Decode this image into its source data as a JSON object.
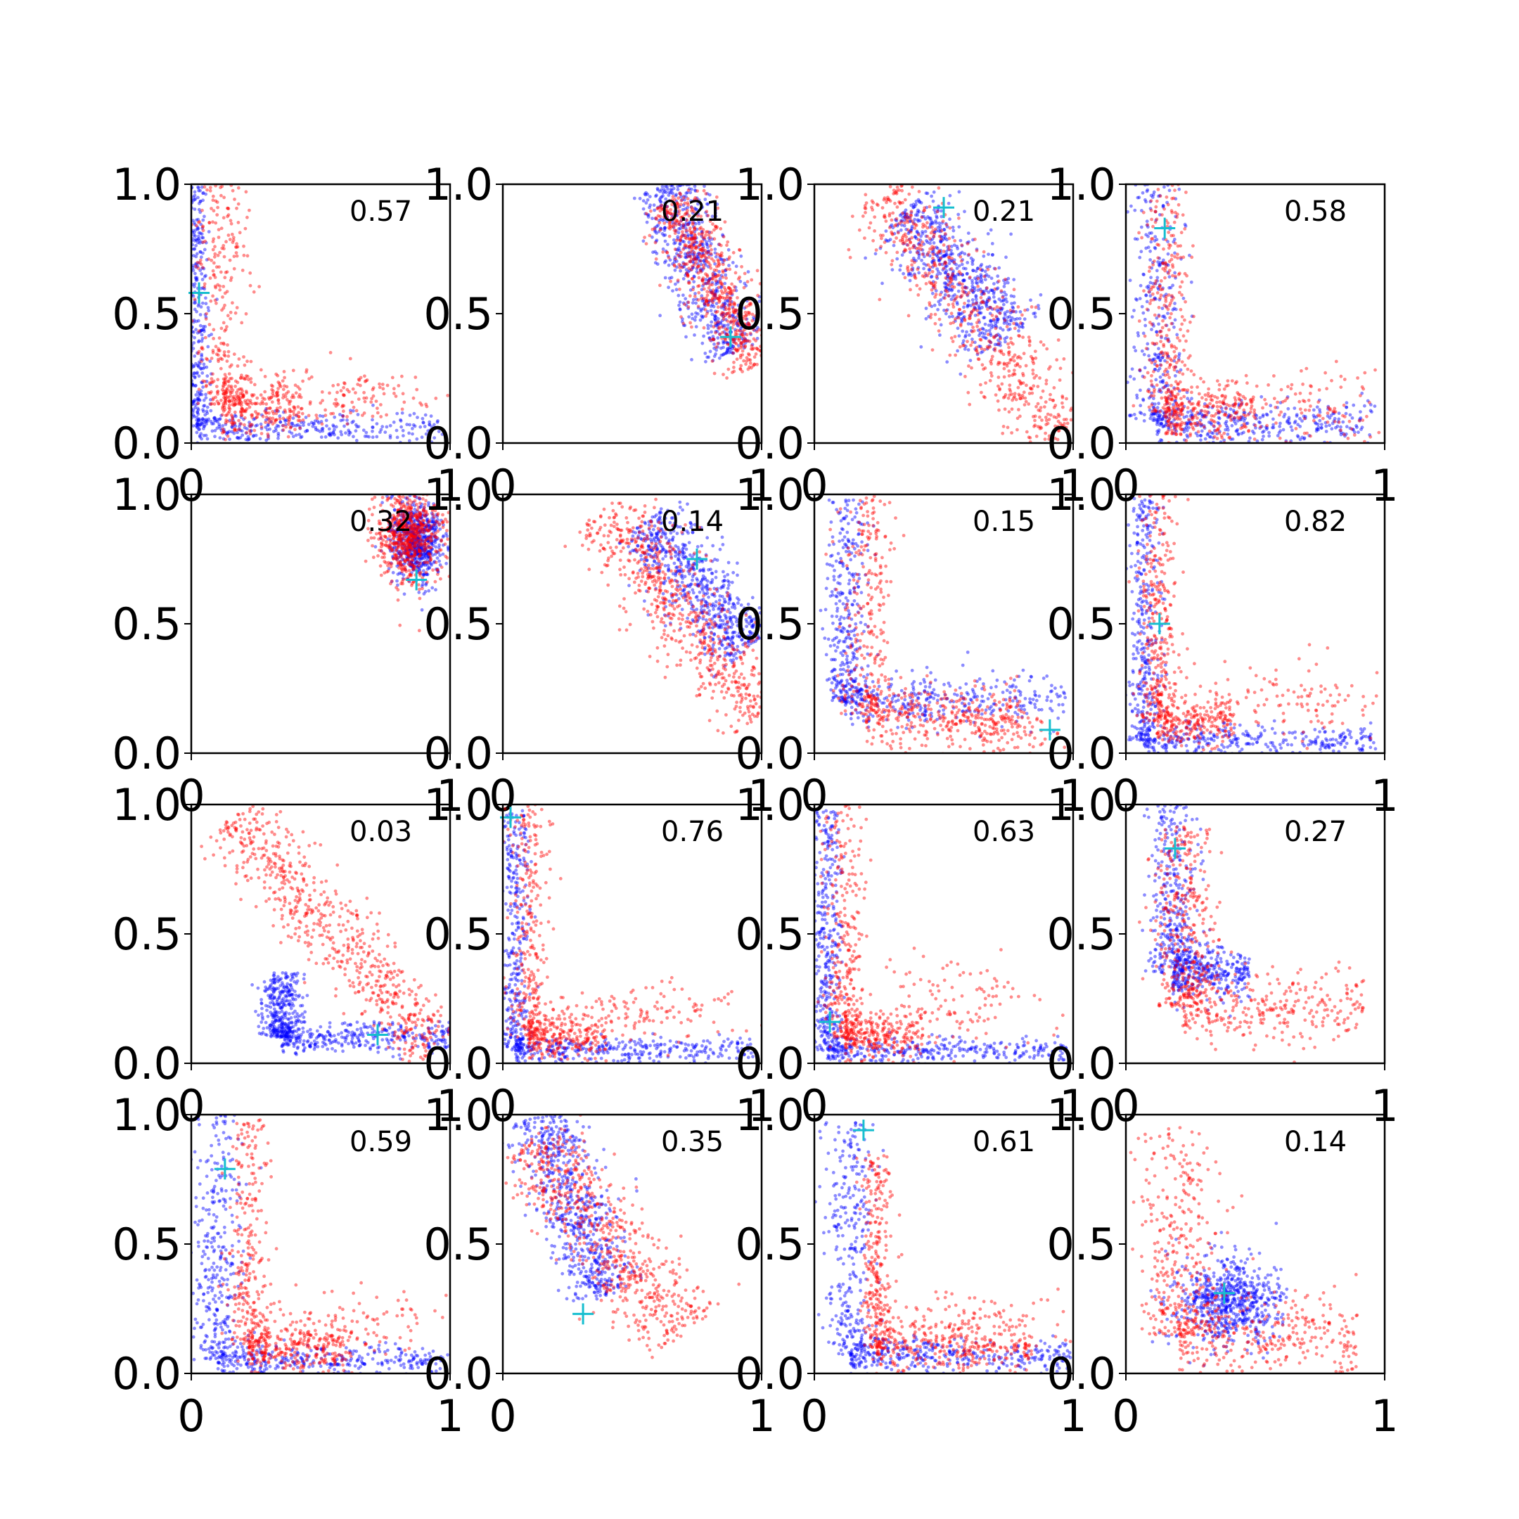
{
  "figure": {
    "background": "#ffffff"
  },
  "style": {
    "series_colors": {
      "blue": "#0000ff",
      "red": "#ff0000",
      "marker": "#17becf"
    },
    "point_alpha": 0.45
  },
  "chart_data": [
    {
      "type": "scatter",
      "title": "",
      "xlabel": "",
      "ylabel": "",
      "xlim": [
        0,
        1
      ],
      "ylim": [
        0,
        1
      ],
      "x_ticks": [
        "0",
        "1"
      ],
      "y_ticks": [
        "0.0",
        "0.5",
        "1.0"
      ],
      "grid": false,
      "annotation": "0.57",
      "marker": {
        "x": 0.03,
        "y": 0.58
      },
      "series": [
        {
          "color": "blue",
          "cloud": {
            "shape": "L",
            "corner": [
              0.02,
              0.06
            ],
            "armLengthX": 0.95,
            "armLengthY": 0.94,
            "spreadX": 0.025,
            "spreadY": 0.03
          }
        },
        {
          "color": "red",
          "cloud": {
            "shape": "L",
            "corner": [
              0.12,
              0.15
            ],
            "armLengthX": 0.3,
            "armLengthY": 0.85,
            "spreadX": 0.05,
            "spreadY": 0.06,
            "tail": {
              "center": [
                0.62,
                0.18
              ],
              "spread": [
                0.15,
                0.06
              ]
            }
          }
        }
      ]
    },
    {
      "type": "scatter",
      "title": "",
      "xlabel": "",
      "ylabel": "",
      "xlim": [
        0,
        1
      ],
      "ylim": [
        0,
        1
      ],
      "x_ticks": [
        "0",
        "1"
      ],
      "y_ticks": [
        "0.0",
        "0.5",
        "1.0"
      ],
      "grid": false,
      "annotation": "0.21",
      "marker": {
        "x": 0.88,
        "y": 0.41
      },
      "series": [
        {
          "color": "blue",
          "cloud": {
            "shape": "band",
            "start": [
              0.62,
              1.0
            ],
            "end": [
              0.9,
              0.35
            ],
            "width": 0.07
          }
        },
        {
          "color": "red",
          "cloud": {
            "shape": "band",
            "start": [
              0.65,
              0.95
            ],
            "end": [
              0.98,
              0.3
            ],
            "width": 0.06
          }
        }
      ]
    },
    {
      "type": "scatter",
      "title": "",
      "xlabel": "",
      "ylabel": "",
      "xlim": [
        0,
        1
      ],
      "ylim": [
        0,
        1
      ],
      "x_ticks": [
        "0",
        "1"
      ],
      "y_ticks": [
        "0.0",
        "0.5",
        "1.0"
      ],
      "grid": false,
      "annotation": "0.21",
      "marker": {
        "x": 0.5,
        "y": 0.91
      },
      "series": [
        {
          "color": "blue",
          "cloud": {
            "shape": "band",
            "start": [
              0.35,
              0.9
            ],
            "end": [
              0.75,
              0.4
            ],
            "width": 0.08
          }
        },
        {
          "color": "red",
          "cloud": {
            "shape": "band",
            "start": [
              0.25,
              1.0
            ],
            "end": [
              0.95,
              0.02
            ],
            "width": 0.08
          }
        }
      ]
    },
    {
      "type": "scatter",
      "title": "",
      "xlabel": "",
      "ylabel": "",
      "xlim": [
        0,
        1
      ],
      "ylim": [
        0,
        1
      ],
      "x_ticks": [
        "0",
        "1"
      ],
      "y_ticks": [
        "0.0",
        "0.5",
        "1.0"
      ],
      "grid": false,
      "annotation": "0.58",
      "marker": {
        "x": 0.15,
        "y": 0.83
      },
      "series": [
        {
          "color": "blue",
          "cloud": {
            "shape": "L",
            "corner": [
              0.12,
              0.08
            ],
            "armLengthX": 0.85,
            "armLengthY": 0.92,
            "spreadX": 0.05,
            "spreadY": 0.04
          }
        },
        {
          "color": "red",
          "cloud": {
            "shape": "L",
            "corner": [
              0.15,
              0.12
            ],
            "armLengthX": 0.35,
            "armLengthY": 0.88,
            "spreadX": 0.05,
            "spreadY": 0.06,
            "tail": {
              "center": [
                0.68,
                0.14
              ],
              "spread": [
                0.18,
                0.07
              ]
            }
          }
        }
      ]
    },
    {
      "type": "scatter",
      "title": "",
      "xlabel": "",
      "ylabel": "",
      "xlim": [
        0,
        1
      ],
      "ylim": [
        0,
        1
      ],
      "x_ticks": [
        "0",
        "1"
      ],
      "y_ticks": [
        "0.0",
        "0.5",
        "1.0"
      ],
      "grid": false,
      "annotation": "0.32",
      "marker": {
        "x": 0.87,
        "y": 0.67
      },
      "series": [
        {
          "color": "blue",
          "cloud": {
            "shape": "blob",
            "center": [
              0.87,
              0.82
            ],
            "spread": [
              0.05,
              0.08
            ]
          }
        },
        {
          "color": "red",
          "cloud": {
            "shape": "blob",
            "center": [
              0.84,
              0.84
            ],
            "spread": [
              0.06,
              0.09
            ]
          }
        }
      ]
    },
    {
      "type": "scatter",
      "title": "",
      "xlabel": "",
      "ylabel": "",
      "xlim": [
        0,
        1
      ],
      "ylim": [
        0,
        1
      ],
      "x_ticks": [
        "0",
        "1"
      ],
      "y_ticks": [
        "0.0",
        "0.5",
        "1.0"
      ],
      "grid": false,
      "annotation": "0.14",
      "marker": {
        "x": 0.75,
        "y": 0.75
      },
      "series": [
        {
          "color": "blue",
          "cloud": {
            "shape": "band",
            "start": [
              0.55,
              0.9
            ],
            "end": [
              0.95,
              0.4
            ],
            "width": 0.07
          }
        },
        {
          "color": "red",
          "cloud": {
            "shape": "band",
            "start": [
              0.4,
              0.95
            ],
            "end": [
              1.0,
              0.15
            ],
            "width": 0.08
          }
        }
      ]
    },
    {
      "type": "scatter",
      "title": "",
      "xlabel": "",
      "ylabel": "",
      "xlim": [
        0,
        1
      ],
      "ylim": [
        0,
        1
      ],
      "x_ticks": [
        "0",
        "1"
      ],
      "y_ticks": [
        "0.0",
        "0.5",
        "1.0"
      ],
      "grid": false,
      "annotation": "0.15",
      "marker": {
        "x": 0.91,
        "y": 0.09
      },
      "series": [
        {
          "color": "blue",
          "cloud": {
            "shape": "L",
            "corner": [
              0.12,
              0.2
            ],
            "armLengthX": 0.85,
            "armLengthY": 0.78,
            "spreadX": 0.04,
            "spreadY": 0.05
          }
        },
        {
          "color": "red",
          "cloud": {
            "shape": "L",
            "corner": [
              0.2,
              0.15
            ],
            "armLengthX": 0.6,
            "armLengthY": 0.85,
            "spreadX": 0.05,
            "spreadY": 0.06,
            "tail": {
              "center": [
                0.7,
                0.08
              ],
              "spread": [
                0.18,
                0.05
              ]
            }
          }
        }
      ]
    },
    {
      "type": "scatter",
      "title": "",
      "xlabel": "",
      "ylabel": "",
      "xlim": [
        0,
        1
      ],
      "ylim": [
        0,
        1
      ],
      "x_ticks": [
        "0",
        "1"
      ],
      "y_ticks": [
        "0.0",
        "0.5",
        "1.0"
      ],
      "grid": false,
      "annotation": "0.82",
      "marker": {
        "x": 0.13,
        "y": 0.5
      },
      "series": [
        {
          "color": "blue",
          "cloud": {
            "shape": "L",
            "corner": [
              0.07,
              0.05
            ],
            "armLengthX": 0.9,
            "armLengthY": 0.95,
            "spreadX": 0.035,
            "spreadY": 0.03
          }
        },
        {
          "color": "red",
          "cloud": {
            "shape": "L",
            "corner": [
              0.12,
              0.12
            ],
            "armLengthX": 0.3,
            "armLengthY": 0.88,
            "spreadX": 0.04,
            "spreadY": 0.05,
            "tail": {
              "center": [
                0.6,
                0.2
              ],
              "spread": [
                0.2,
                0.08
              ]
            }
          }
        }
      ]
    },
    {
      "type": "scatter",
      "title": "",
      "xlabel": "",
      "ylabel": "",
      "xlim": [
        0,
        1
      ],
      "ylim": [
        0,
        1
      ],
      "x_ticks": [
        "0",
        "1"
      ],
      "y_ticks": [
        "0.0",
        "0.5",
        "1.0"
      ],
      "grid": false,
      "annotation": "0.03",
      "marker": {
        "x": 0.72,
        "y": 0.11
      },
      "series": [
        {
          "color": "blue",
          "cloud": {
            "shape": "L",
            "corner": [
              0.35,
              0.1
            ],
            "armLengthX": 0.65,
            "armLengthY": 0.25,
            "spreadX": 0.04,
            "spreadY": 0.03
          }
        },
        {
          "color": "red",
          "cloud": {
            "shape": "band",
            "start": [
              0.15,
              0.95
            ],
            "end": [
              0.95,
              0.06
            ],
            "width": 0.07
          }
        }
      ]
    },
    {
      "type": "scatter",
      "title": "",
      "xlabel": "",
      "ylabel": "",
      "xlim": [
        0,
        1
      ],
      "ylim": [
        0,
        1
      ],
      "x_ticks": [
        "0",
        "1"
      ],
      "y_ticks": [
        "0.0",
        "0.5",
        "1.0"
      ],
      "grid": false,
      "annotation": "0.76",
      "marker": {
        "x": 0.03,
        "y": 0.95
      },
      "series": [
        {
          "color": "blue",
          "cloud": {
            "shape": "L",
            "corner": [
              0.05,
              0.05
            ],
            "armLengthX": 0.93,
            "armLengthY": 0.93,
            "spreadX": 0.03,
            "spreadY": 0.025
          }
        },
        {
          "color": "red",
          "cloud": {
            "shape": "L",
            "corner": [
              0.1,
              0.1
            ],
            "armLengthX": 0.3,
            "armLengthY": 0.9,
            "spreadX": 0.04,
            "spreadY": 0.05,
            "tail": {
              "center": [
                0.55,
                0.2
              ],
              "spread": [
                0.18,
                0.06
              ]
            }
          }
        }
      ]
    },
    {
      "type": "scatter",
      "title": "",
      "xlabel": "",
      "ylabel": "",
      "xlim": [
        0,
        1
      ],
      "ylim": [
        0,
        1
      ],
      "x_ticks": [
        "0",
        "1"
      ],
      "y_ticks": [
        "0.0",
        "0.5",
        "1.0"
      ],
      "grid": false,
      "annotation": "0.63",
      "marker": {
        "x": 0.06,
        "y": 0.16
      },
      "series": [
        {
          "color": "blue",
          "cloud": {
            "shape": "L",
            "corner": [
              0.05,
              0.05
            ],
            "armLengthX": 0.93,
            "armLengthY": 0.93,
            "spreadX": 0.03,
            "spreadY": 0.025
          }
        },
        {
          "color": "red",
          "cloud": {
            "shape": "L",
            "corner": [
              0.12,
              0.1
            ],
            "armLengthX": 0.3,
            "armLengthY": 0.9,
            "spreadX": 0.04,
            "spreadY": 0.05,
            "tail": {
              "center": [
                0.55,
                0.22
              ],
              "spread": [
                0.18,
                0.08
              ]
            }
          }
        }
      ]
    },
    {
      "type": "scatter",
      "title": "",
      "xlabel": "",
      "ylabel": "",
      "xlim": [
        0,
        1
      ],
      "ylim": [
        0,
        1
      ],
      "x_ticks": [
        "0",
        "1"
      ],
      "y_ticks": [
        "0.0",
        "0.5",
        "1.0"
      ],
      "grid": false,
      "annotation": "0.27",
      "marker": {
        "x": 0.19,
        "y": 0.83
      },
      "series": [
        {
          "color": "blue",
          "cloud": {
            "shape": "L",
            "corner": [
              0.18,
              0.35
            ],
            "armLengthX": 0.3,
            "armLengthY": 0.65,
            "spreadX": 0.05,
            "spreadY": 0.05
          }
        },
        {
          "color": "red",
          "cloud": {
            "shape": "L",
            "corner": [
              0.22,
              0.22
            ],
            "armLengthX": 0.7,
            "armLengthY": 0.7,
            "spreadX": 0.06,
            "spreadY": 0.07
          }
        }
      ]
    },
    {
      "type": "scatter",
      "title": "",
      "xlabel": "",
      "ylabel": "",
      "xlim": [
        0,
        1
      ],
      "ylim": [
        0,
        1
      ],
      "x_ticks": [
        "0",
        "1"
      ],
      "y_ticks": [
        "0.0",
        "0.5",
        "1.0"
      ],
      "grid": false,
      "annotation": "0.59",
      "marker": {
        "x": 0.13,
        "y": 0.79
      },
      "series": [
        {
          "color": "blue",
          "cloud": {
            "shape": "L",
            "corner": [
              0.1,
              0.05
            ],
            "armLengthX": 0.9,
            "armLengthY": 0.95,
            "spreadX": 0.05,
            "spreadY": 0.03
          }
        },
        {
          "color": "red",
          "cloud": {
            "shape": "L",
            "corner": [
              0.22,
              0.1
            ],
            "armLengthX": 0.4,
            "armLengthY": 0.88,
            "spreadX": 0.04,
            "spreadY": 0.05,
            "tail": {
              "center": [
                0.6,
                0.18
              ],
              "spread": [
                0.18,
                0.07
              ]
            }
          }
        }
      ]
    },
    {
      "type": "scatter",
      "title": "",
      "xlabel": "",
      "ylabel": "",
      "xlim": [
        0,
        1
      ],
      "ylim": [
        0,
        1
      ],
      "x_ticks": [
        "0",
        "1"
      ],
      "y_ticks": [
        "0.0",
        "0.5",
        "1.0"
      ],
      "grid": false,
      "annotation": "0.35",
      "marker": {
        "x": 0.31,
        "y": 0.23
      },
      "series": [
        {
          "color": "blue",
          "cloud": {
            "shape": "band",
            "start": [
              0.15,
              1.0
            ],
            "end": [
              0.4,
              0.3
            ],
            "width": 0.07
          }
        },
        {
          "color": "red",
          "cloud": {
            "shape": "band",
            "start": [
              0.1,
              0.9
            ],
            "end": [
              0.7,
              0.15
            ],
            "width": 0.08
          }
        }
      ]
    },
    {
      "type": "scatter",
      "title": "",
      "xlabel": "",
      "ylabel": "",
      "xlim": [
        0,
        1
      ],
      "ylim": [
        0,
        1
      ],
      "x_ticks": [
        "0",
        "1"
      ],
      "y_ticks": [
        "0.0",
        "0.5",
        "1.0"
      ],
      "grid": false,
      "annotation": "0.61",
      "marker": {
        "x": 0.19,
        "y": 0.94
      },
      "series": [
        {
          "color": "blue",
          "cloud": {
            "shape": "L",
            "corner": [
              0.14,
              0.07
            ],
            "armLengthX": 0.85,
            "armLengthY": 0.9,
            "spreadX": 0.05,
            "spreadY": 0.035
          }
        },
        {
          "color": "red",
          "cloud": {
            "shape": "L",
            "corner": [
              0.24,
              0.1
            ],
            "armLengthX": 0.6,
            "armLengthY": 0.75,
            "spreadX": 0.03,
            "spreadY": 0.05,
            "tail": {
              "center": [
                0.6,
                0.18
              ],
              "spread": [
                0.18,
                0.07
              ]
            }
          }
        }
      ]
    },
    {
      "type": "scatter",
      "title": "",
      "xlabel": "",
      "ylabel": "",
      "xlim": [
        0,
        1
      ],
      "ylim": [
        0,
        1
      ],
      "x_ticks": [
        "0",
        "1"
      ],
      "y_ticks": [
        "0.0",
        "0.5",
        "1.0"
      ],
      "grid": false,
      "annotation": "0.14",
      "marker": {
        "x": 0.38,
        "y": 0.31
      },
      "series": [
        {
          "color": "blue",
          "cloud": {
            "shape": "blob",
            "center": [
              0.4,
              0.28
            ],
            "spread": [
              0.1,
              0.08
            ]
          }
        },
        {
          "color": "red",
          "cloud": {
            "shape": "L",
            "corner": [
              0.2,
              0.15
            ],
            "armLengthX": 0.7,
            "armLengthY": 0.8,
            "spreadX": 0.08,
            "spreadY": 0.08
          }
        }
      ]
    }
  ]
}
